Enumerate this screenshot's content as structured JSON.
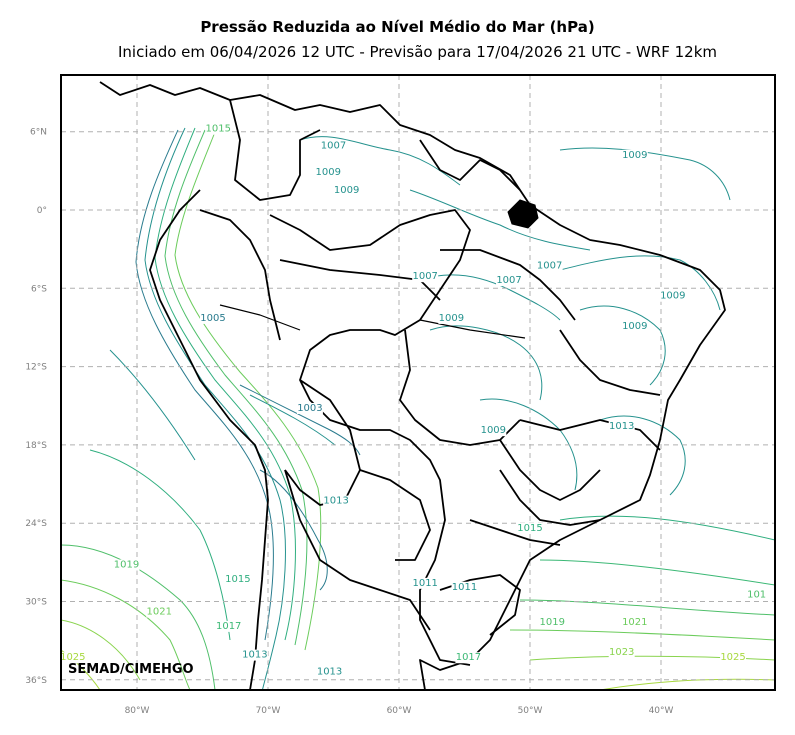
{
  "title": "Pressão Reduzida ao Nível Médio do Mar (hPa)",
  "subtitle": "Iniciado em 06/04/2026 12 UTC - Previsão para 17/04/2026 21 UTC - WRF 12km",
  "credit": "SEMAD/CIMEHGO",
  "lat_ticks": [
    {
      "lat": 6,
      "label": "6°N"
    },
    {
      "lat": 0,
      "label": "0°"
    },
    {
      "lat": -6,
      "label": "6°S"
    },
    {
      "lat": -12,
      "label": "12°S"
    },
    {
      "lat": -18,
      "label": "18°S"
    },
    {
      "lat": -24,
      "label": "24°S"
    },
    {
      "lat": -30,
      "label": "30°S"
    },
    {
      "lat": -36,
      "label": "36°S"
    }
  ],
  "lon_ticks": [
    {
      "lon": -80,
      "label": "80°W"
    },
    {
      "lon": -70,
      "label": "70°W"
    },
    {
      "lon": -60,
      "label": "60°W"
    },
    {
      "lon": -50,
      "label": "50°W"
    },
    {
      "lon": -40,
      "label": "40°W"
    }
  ],
  "isobar_labels": [
    {
      "text": "1015",
      "lon": -73.8,
      "lat": 6.0,
      "color": "#4fbf6a"
    },
    {
      "text": "1007",
      "lon": -65.0,
      "lat": 4.7,
      "color": "#25928e"
    },
    {
      "text": "1009",
      "lon": -65.4,
      "lat": 2.7,
      "color": "#25928e"
    },
    {
      "text": "1009",
      "lon": -64.0,
      "lat": 1.3,
      "color": "#25928e"
    },
    {
      "text": "1009",
      "lon": -42.0,
      "lat": 4.0,
      "color": "#25928e"
    },
    {
      "text": "1007",
      "lon": -58.0,
      "lat": -5.3,
      "color": "#25928e"
    },
    {
      "text": "1007",
      "lon": -48.5,
      "lat": -4.5,
      "color": "#25928e"
    },
    {
      "text": "1007",
      "lon": -51.6,
      "lat": -5.6,
      "color": "#25928e"
    },
    {
      "text": "1009",
      "lon": -56.0,
      "lat": -8.5,
      "color": "#25928e"
    },
    {
      "text": "1009",
      "lon": -39.1,
      "lat": -6.8,
      "color": "#25928e"
    },
    {
      "text": "1009",
      "lon": -42.0,
      "lat": -9.1,
      "color": "#25928e"
    },
    {
      "text": "1005",
      "lon": -74.2,
      "lat": -8.5,
      "color": "#2a7b8e"
    },
    {
      "text": "1013",
      "lon": -43.0,
      "lat": -16.8,
      "color": "#25928e"
    },
    {
      "text": "1003",
      "lon": -66.8,
      "lat": -15.4,
      "color": "#2a7b8e"
    },
    {
      "text": "1009",
      "lon": -52.8,
      "lat": -17.1,
      "color": "#25928e"
    },
    {
      "text": "1013",
      "lon": -64.8,
      "lat": -22.5,
      "color": "#25928e"
    },
    {
      "text": "1015",
      "lon": -50.0,
      "lat": -24.6,
      "color": "#2fae7f"
    },
    {
      "text": "1019",
      "lon": -80.8,
      "lat": -27.4,
      "color": "#4fbf6a"
    },
    {
      "text": "1015",
      "lon": -72.3,
      "lat": -28.5,
      "color": "#2fae7f"
    },
    {
      "text": "1011",
      "lon": -58.0,
      "lat": -28.8,
      "color": "#25928e"
    },
    {
      "text": "1011",
      "lon": -55.0,
      "lat": -29.1,
      "color": "#25928e"
    },
    {
      "text": "1021",
      "lon": -78.3,
      "lat": -31.0,
      "color": "#6ccc5c"
    },
    {
      "text": "1017",
      "lon": -73.0,
      "lat": -32.1,
      "color": "#3bb875"
    },
    {
      "text": "1019",
      "lon": -48.3,
      "lat": -31.8,
      "color": "#4fbf6a"
    },
    {
      "text": "1021",
      "lon": -42.0,
      "lat": -31.8,
      "color": "#6ccc5c"
    },
    {
      "text": "1013",
      "lon": -71.0,
      "lat": -34.3,
      "color": "#25928e"
    },
    {
      "text": "1017",
      "lon": -54.7,
      "lat": -34.5,
      "color": "#3bb875"
    },
    {
      "text": "1023",
      "lon": -43.0,
      "lat": -34.1,
      "color": "#8ad44e"
    },
    {
      "text": "1025",
      "lon": -34.5,
      "lat": -34.5,
      "color": "#a8d93f"
    },
    {
      "text": "1025",
      "lon": -84.9,
      "lat": -34.5,
      "color": "#a8d93f"
    },
    {
      "text": "1013",
      "lon": -65.3,
      "lat": -35.6,
      "color": "#25928e"
    },
    {
      "text": "101",
      "lon": -32.7,
      "lat": -29.7,
      "color": "#4fbf6a"
    }
  ],
  "colors": {
    "frame": "#000000",
    "border": "#000000",
    "grid": "#b0b0b0",
    "tick_label": "#808080",
    "isobar_low": "#2a7b8e",
    "isobar_mid": "#25928e",
    "isobar_high": "#a8d93f"
  }
}
